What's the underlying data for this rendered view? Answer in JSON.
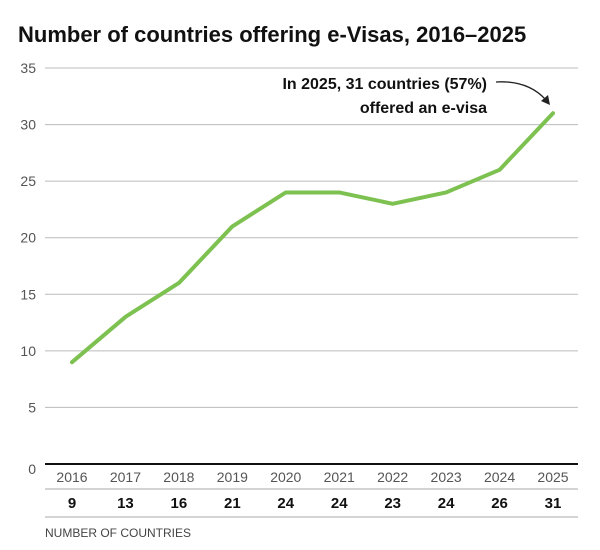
{
  "chart_data": {
    "type": "line",
    "title": "Number of countries offering e-Visas, 2016–2025",
    "x": [
      "2016",
      "2017",
      "2018",
      "2019",
      "2020",
      "2021",
      "2022",
      "2023",
      "2024",
      "2025"
    ],
    "series": [
      {
        "name": "Number of countries",
        "values": [
          9,
          13,
          16,
          21,
          24,
          24,
          23,
          24,
          26,
          31
        ],
        "color": "#7dc151"
      }
    ],
    "yticks": [
      0,
      5,
      10,
      15,
      20,
      25,
      30,
      35
    ],
    "ylim": [
      0,
      35
    ],
    "grid": true,
    "annotation": {
      "line1": "In 2025, 31 countries (57%)",
      "line2": "offered an e-visa"
    },
    "table_label": "NUMBER OF COUNTRIES"
  }
}
